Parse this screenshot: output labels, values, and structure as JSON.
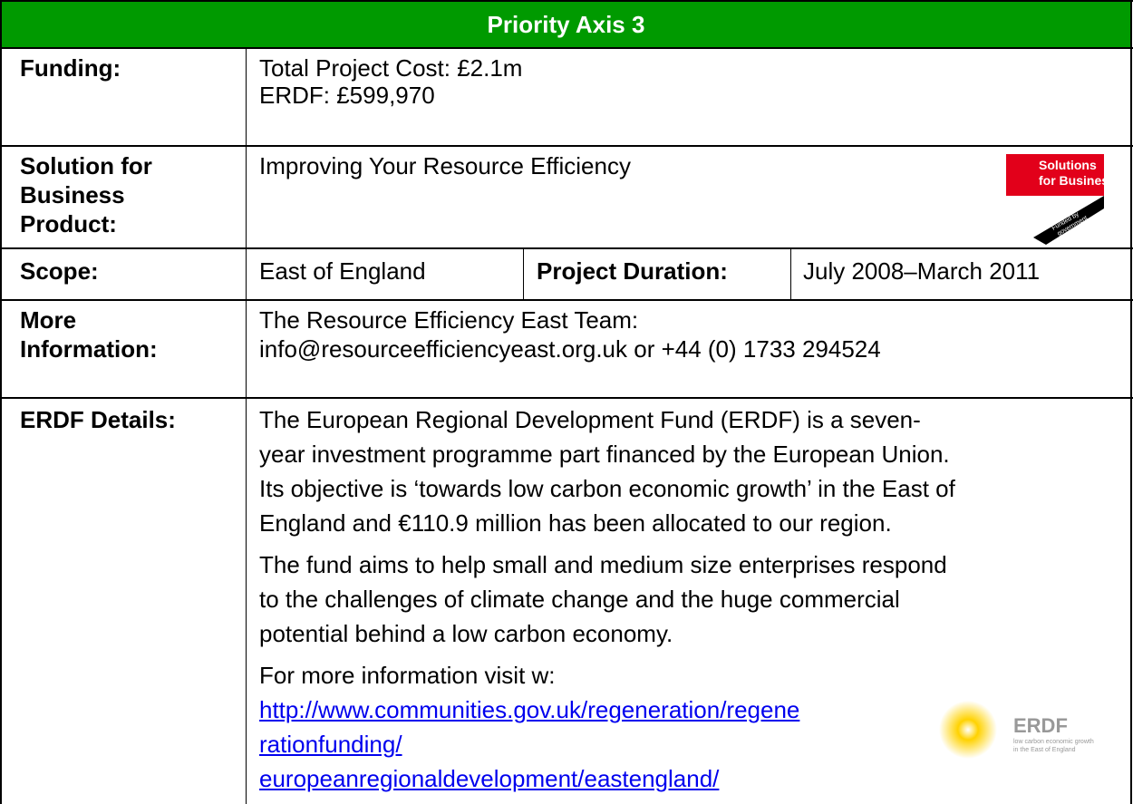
{
  "header": {
    "title": "Priority Axis 3"
  },
  "rows": {
    "funding": {
      "label": "Funding:",
      "lines": [
        "Total Project Cost: £2.1m",
        "ERDF: £599,970"
      ]
    },
    "solution": {
      "label": [
        "Solution for",
        "Business",
        "Product:"
      ],
      "value": "Improving Your Resource Efficiency",
      "logo": {
        "title": [
          "Solutions",
          "for Business"
        ],
        "tag": [
          "Funded by",
          "government"
        ]
      }
    },
    "scope": {
      "label": "Scope:",
      "value": "East of England",
      "duration_label": "Project Duration:",
      "duration_value": "July 2008–March 2011"
    },
    "info": {
      "label": [
        "More",
        "Information:"
      ],
      "lines": [
        "The Resource Efficiency East Team:",
        "info@resourceefficiencyeast.org.uk or +44 (0) 1733 294524"
      ]
    },
    "erdf": {
      "label": "ERDF Details:",
      "paragraphs": [
        [
          "The European Regional Development Fund (ERDF) is a seven-",
          "year investment programme part financed by the European Union.",
          "Its objective is ‘towards low carbon economic growth’ in the East of",
          "England and €110.9 million has been allocated to our region."
        ],
        [
          "The fund aims to help small and medium size enterprises respond",
          "to the challenges of climate change and the huge commercial",
          "potential behind a low carbon economy."
        ]
      ],
      "visit": "For more information visit w:",
      "link_lines": [
        "http://www.communities.gov.uk/regeneration/regene",
        "rationfunding/",
        "europeanregionaldevelopment/eastengland/"
      ],
      "logo": {
        "title": "ERDF",
        "tag": [
          "low carbon economic growth",
          "in the East of England"
        ]
      }
    }
  }
}
